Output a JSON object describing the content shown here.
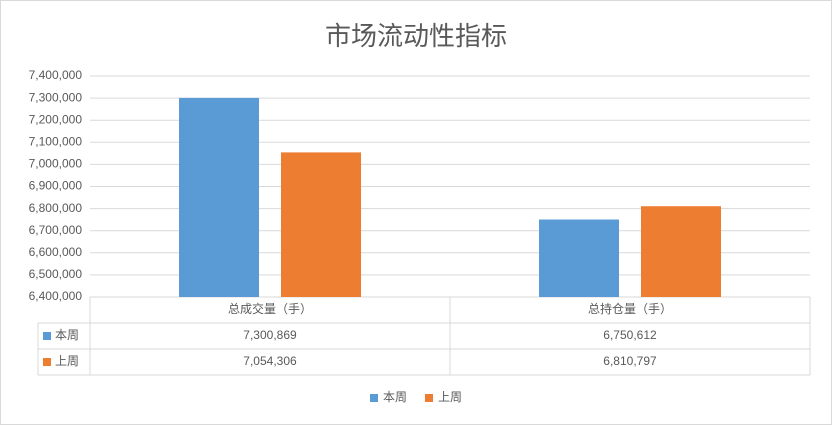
{
  "chart_data": {
    "type": "bar",
    "title": "市场流动性指标",
    "categories": [
      "总成交量（手）",
      "总持仓量（手）"
    ],
    "series": [
      {
        "name": "本周",
        "color": "#5b9bd5",
        "values": [
          7300869,
          6750612
        ],
        "value_labels": [
          "7,300,869",
          "6,750,612"
        ]
      },
      {
        "name": "上周",
        "color": "#ed7d31",
        "values": [
          7054306,
          6810797
        ],
        "value_labels": [
          "7,054,306",
          "6,810,797"
        ]
      }
    ],
    "ylim": [
      6400000,
      7400000
    ],
    "yticks": [
      {
        "value": 6400000,
        "label": "6,400,000"
      },
      {
        "value": 6500000,
        "label": "6,500,000"
      },
      {
        "value": 6600000,
        "label": "6,600,000"
      },
      {
        "value": 6700000,
        "label": "6,700,000"
      },
      {
        "value": 6800000,
        "label": "6,800,000"
      },
      {
        "value": 6900000,
        "label": "6,900,000"
      },
      {
        "value": 7000000,
        "label": "7,000,000"
      },
      {
        "value": 7100000,
        "label": "7,100,000"
      },
      {
        "value": 7200000,
        "label": "7,200,000"
      },
      {
        "value": 7300000,
        "label": "7,300,000"
      },
      {
        "value": 7400000,
        "label": "7,400,000"
      }
    ],
    "grid": true,
    "legend": "bottom"
  }
}
